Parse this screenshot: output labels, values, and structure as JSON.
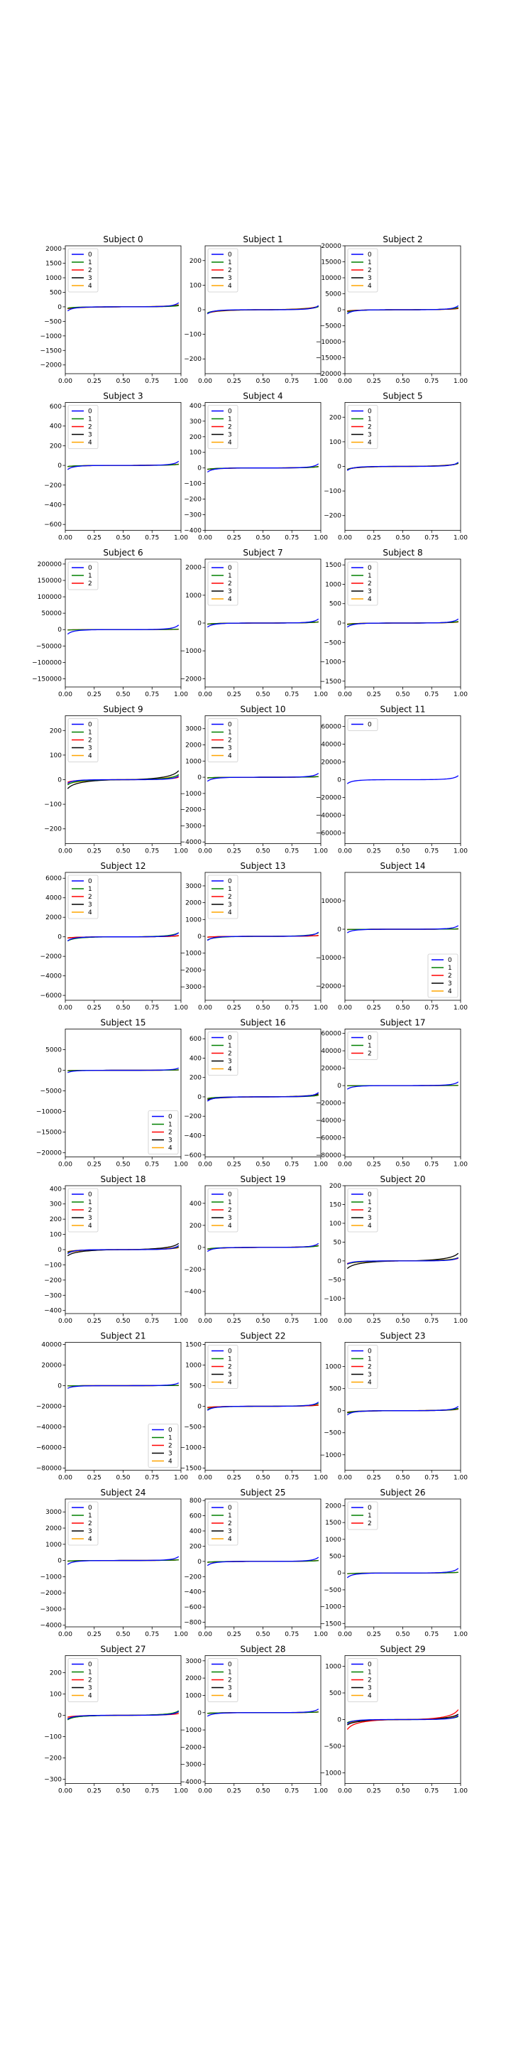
{
  "figure": {
    "colors": {
      "0": "#0000ff",
      "1": "#008000",
      "2": "#ff0000",
      "3": "#000000",
      "4": "#ffa500"
    },
    "x_ticks": [
      "0.00",
      "0.25",
      "0.50",
      "0.75",
      "1.00"
    ]
  },
  "chart_data": [
    {
      "type": "line",
      "title": "Subject 0",
      "legend": [
        "0",
        "1",
        "2",
        "3",
        "4"
      ],
      "legend_loc": "upper left",
      "yticks": [
        "2000",
        "1500",
        "1000",
        "500",
        "0",
        "−500",
        "−1000",
        "−1500",
        "−2000"
      ],
      "ylim": [
        -2300,
        2100
      ],
      "amplitudes": [
        2000,
        300,
        300,
        300,
        300
      ]
    },
    {
      "type": "line",
      "title": "Subject 1",
      "legend": [
        "0",
        "1",
        "2",
        "3",
        "4"
      ],
      "legend_loc": "upper left",
      "yticks": [
        "200",
        "100",
        "0",
        "−100",
        "−200"
      ],
      "ylim": [
        -260,
        260
      ],
      "amplitudes": [
        240,
        90,
        80,
        70,
        60
      ]
    },
    {
      "type": "line",
      "title": "Subject 2",
      "legend": [
        "0",
        "1",
        "2",
        "3",
        "4"
      ],
      "legend_loc": "upper left",
      "yticks": [
        "20000",
        "15000",
        "10000",
        "5000",
        "0",
        "−5000",
        "−10000",
        "−15000",
        "−20000"
      ],
      "ylim": [
        -20000,
        20000
      ],
      "amplitudes": [
        18000,
        5000,
        3000,
        2000,
        1500
      ]
    },
    {
      "type": "line",
      "title": "Subject 3",
      "legend": [
        "0",
        "1",
        "2",
        "3",
        "4"
      ],
      "legend_loc": "upper left",
      "yticks": [
        "600",
        "400",
        "200",
        "0",
        "−200",
        "−400",
        "−600"
      ],
      "ylim": [
        -660,
        640
      ],
      "amplitudes": [
        600,
        80,
        70,
        60,
        50
      ]
    },
    {
      "type": "line",
      "title": "Subject 4",
      "legend": [
        "0",
        "1",
        "2",
        "3",
        "4"
      ],
      "legend_loc": "upper left",
      "yticks": [
        "400",
        "300",
        "200",
        "100",
        "0",
        "−100",
        "−200",
        "−300",
        "−400"
      ],
      "ylim": [
        -400,
        420
      ],
      "amplitudes": [
        380,
        60,
        50,
        45,
        40
      ]
    },
    {
      "type": "line",
      "title": "Subject 5",
      "legend": [
        "0",
        "1",
        "2",
        "3",
        "4"
      ],
      "legend_loc": "upper left",
      "yticks": [
        "200",
        "100",
        "0",
        "−100",
        "−200"
      ],
      "ylim": [
        -260,
        260
      ],
      "amplitudes": [
        240,
        90,
        70,
        60,
        50
      ]
    },
    {
      "type": "line",
      "title": "Subject 6",
      "legend": [
        "0",
        "1",
        "2"
      ],
      "legend_loc": "upper left",
      "yticks": [
        "200000",
        "150000",
        "100000",
        "50000",
        "0",
        "−50000",
        "−100000",
        "−150000"
      ],
      "ylim": [
        -175000,
        215000
      ],
      "amplitudes": [
        200000,
        10000,
        5000
      ]
    },
    {
      "type": "line",
      "title": "Subject 7",
      "legend": [
        "0",
        "1",
        "2",
        "3",
        "4"
      ],
      "legend_loc": "upper left",
      "yticks": [
        "2000",
        "1000",
        "0",
        "−1000",
        "−2000"
      ],
      "ylim": [
        -2300,
        2300
      ],
      "amplitudes": [
        2100,
        300,
        250,
        200,
        150
      ]
    },
    {
      "type": "line",
      "title": "Subject 8",
      "legend": [
        "0",
        "1",
        "2",
        "3",
        "4"
      ],
      "legend_loc": "upper left",
      "yticks": [
        "1500",
        "1000",
        "500",
        "0",
        "−500",
        "−1000",
        "−1500"
      ],
      "ylim": [
        -1650,
        1650
      ],
      "amplitudes": [
        1500,
        300,
        200,
        150,
        100
      ]
    },
    {
      "type": "line",
      "title": "Subject 9",
      "legend": [
        "0",
        "1",
        "2",
        "3",
        "4"
      ],
      "legend_loc": "upper left",
      "yticks": [
        "200",
        "100",
        "0",
        "−100",
        "−200"
      ],
      "ylim": [
        -260,
        260
      ],
      "amplitudes": [
        220,
        150,
        60,
        180,
        80
      ]
    },
    {
      "type": "line",
      "title": "Subject 10",
      "legend": [
        "0",
        "1",
        "2",
        "3",
        "4"
      ],
      "legend_loc": "upper left",
      "yticks": [
        "3000",
        "2000",
        "1000",
        "0",
        "−1000",
        "−2000",
        "−3000",
        "−4000"
      ],
      "ylim": [
        -4100,
        3800
      ],
      "amplitudes": [
        3500,
        300,
        250,
        200,
        150
      ]
    },
    {
      "type": "line",
      "title": "Subject 11",
      "legend": [
        "0"
      ],
      "legend_loc": "upper left",
      "yticks": [
        "60000",
        "40000",
        "20000",
        "0",
        "−20000",
        "−40000",
        "−60000"
      ],
      "ylim": [
        -72000,
        72000
      ],
      "amplitudes": [
        65000
      ]
    },
    {
      "type": "line",
      "title": "Subject 12",
      "legend": [
        "0",
        "1",
        "2",
        "3",
        "4"
      ],
      "legend_loc": "upper left",
      "yticks": [
        "6000",
        "4000",
        "2000",
        "0",
        "−2000",
        "−4000",
        "−6000"
      ],
      "ylim": [
        -6500,
        6600
      ],
      "amplitudes": [
        6000,
        3000,
        800,
        600,
        400
      ]
    },
    {
      "type": "line",
      "title": "Subject 13",
      "legend": [
        "0",
        "1",
        "2",
        "3",
        "4"
      ],
      "legend_loc": "upper left",
      "yticks": [
        "3000",
        "2000",
        "1000",
        "0",
        "−1000",
        "−2000",
        "−3000"
      ],
      "ylim": [
        -3800,
        3800
      ],
      "amplitudes": [
        3500,
        1500,
        300,
        250,
        200
      ]
    },
    {
      "type": "line",
      "title": "Subject 14",
      "legend": [
        "0",
        "1",
        "2",
        "3",
        "4"
      ],
      "legend_loc": "lower right",
      "yticks": [
        "10000",
        "0",
        "−10000",
        "−20000"
      ],
      "ylim": [
        -25000,
        20000
      ],
      "amplitudes": [
        18000,
        1000,
        800,
        600,
        400
      ]
    },
    {
      "type": "line",
      "title": "Subject 15",
      "legend": [
        "0",
        "1",
        "2",
        "3",
        "4"
      ],
      "legend_loc": "lower right",
      "yticks": [
        "5000",
        "0",
        "−5000",
        "−10000",
        "−15000",
        "−20000"
      ],
      "ylim": [
        -21000,
        10000
      ],
      "amplitudes": [
        8000,
        800,
        600,
        500,
        400
      ]
    },
    {
      "type": "line",
      "title": "Subject 16",
      "legend": [
        "0",
        "1",
        "2",
        "3",
        "4"
      ],
      "legend_loc": "upper left",
      "yticks": [
        "600",
        "400",
        "200",
        "0",
        "−200",
        "−400",
        "−600"
      ],
      "ylim": [
        -620,
        700
      ],
      "amplitudes": [
        650,
        120,
        100,
        150,
        80
      ]
    },
    {
      "type": "line",
      "title": "Subject 17",
      "legend": [
        "0",
        "1",
        "2"
      ],
      "legend_loc": "upper left",
      "yticks": [
        "60000",
        "40000",
        "20000",
        "0",
        "−20000",
        "−40000",
        "−60000",
        "−80000"
      ],
      "ylim": [
        -82000,
        65000
      ],
      "amplitudes": [
        60000,
        2000,
        1000
      ]
    },
    {
      "type": "line",
      "title": "Subject 18",
      "legend": [
        "0",
        "1",
        "2",
        "3",
        "4"
      ],
      "legend_loc": "upper left",
      "yticks": [
        "400",
        "300",
        "200",
        "100",
        "0",
        "−100",
        "−200",
        "−300",
        "−400"
      ],
      "ylim": [
        -420,
        420
      ],
      "amplitudes": [
        380,
        120,
        80,
        200,
        90
      ]
    },
    {
      "type": "line",
      "title": "Subject 19",
      "legend": [
        "0",
        "1",
        "2",
        "3",
        "4"
      ],
      "legend_loc": "upper left",
      "yticks": [
        "400",
        "200",
        "0",
        "−200",
        "−400"
      ],
      "ylim": [
        -600,
        560
      ],
      "amplitudes": [
        520,
        100,
        90,
        80,
        70
      ]
    },
    {
      "type": "line",
      "title": "Subject 20",
      "legend": [
        "0",
        "1",
        "2",
        "3",
        "4"
      ],
      "legend_loc": "upper left",
      "yticks": [
        "200",
        "150",
        "100",
        "50",
        "0",
        "−50",
        "−100"
      ],
      "ylim": [
        -140,
        200
      ],
      "amplitudes": [
        120,
        60,
        40,
        100,
        35
      ]
    },
    {
      "type": "line",
      "title": "Subject 21",
      "legend": [
        "0",
        "1",
        "2",
        "3",
        "4"
      ],
      "legend_loc": "lower right",
      "yticks": [
        "40000",
        "20000",
        "0",
        "−20000",
        "−40000",
        "−60000",
        "−80000"
      ],
      "ylim": [
        -82000,
        42000
      ],
      "amplitudes": [
        38000,
        2000,
        1500,
        1200,
        1000
      ]
    },
    {
      "type": "line",
      "title": "Subject 22",
      "legend": [
        "0",
        "1",
        "2",
        "3",
        "4"
      ],
      "legend_loc": "upper left",
      "yticks": [
        "1500",
        "1000",
        "500",
        "0",
        "−500",
        "−1000",
        "−1500"
      ],
      "ylim": [
        -1550,
        1550
      ],
      "amplitudes": [
        1450,
        500,
        200,
        150,
        100
      ]
    },
    {
      "type": "line",
      "title": "Subject 23",
      "legend": [
        "0",
        "1",
        "2",
        "3",
        "4"
      ],
      "legend_loc": "upper left",
      "yticks": [
        "1000",
        "500",
        "0",
        "−500",
        "−1000"
      ],
      "ylim": [
        -1350,
        1550
      ],
      "amplitudes": [
        1400,
        300,
        200,
        250,
        150
      ]
    },
    {
      "type": "line",
      "title": "Subject 24",
      "legend": [
        "0",
        "1",
        "2",
        "3",
        "4"
      ],
      "legend_loc": "upper left",
      "yticks": [
        "3000",
        "2000",
        "1000",
        "0",
        "−1000",
        "−2000",
        "−3000",
        "−4000"
      ],
      "ylim": [
        -4100,
        3800
      ],
      "amplitudes": [
        3500,
        300,
        250,
        200,
        150
      ]
    },
    {
      "type": "line",
      "title": "Subject 25",
      "legend": [
        "0",
        "1",
        "2",
        "3",
        "4"
      ],
      "legend_loc": "upper left",
      "yticks": [
        "800",
        "600",
        "400",
        "200",
        "0",
        "−200",
        "−400",
        "−600",
        "−800"
      ],
      "ylim": [
        -860,
        820
      ],
      "amplitudes": [
        780,
        80,
        70,
        60,
        50
      ]
    },
    {
      "type": "line",
      "title": "Subject 26",
      "legend": [
        "0",
        "1",
        "2"
      ],
      "legend_loc": "upper left",
      "yticks": [
        "2000",
        "1500",
        "1000",
        "500",
        "0",
        "−500",
        "−1000",
        "−1500"
      ],
      "ylim": [
        -1600,
        2200
      ],
      "amplitudes": [
        2000,
        150,
        120
      ]
    },
    {
      "type": "line",
      "title": "Subject 27",
      "legend": [
        "0",
        "1",
        "2",
        "3",
        "4"
      ],
      "legend_loc": "upper left",
      "yticks": [
        "200",
        "100",
        "0",
        "−100",
        "−200",
        "−300"
      ],
      "ylim": [
        -320,
        280
      ],
      "amplitudes": [
        260,
        150,
        50,
        80,
        40
      ]
    },
    {
      "type": "line",
      "title": "Subject 28",
      "legend": [
        "0",
        "1",
        "2",
        "3",
        "4"
      ],
      "legend_loc": "upper left",
      "yticks": [
        "3000",
        "2000",
        "1000",
        "0",
        "−1000",
        "−2000",
        "−3000",
        "−4000"
      ],
      "ylim": [
        -4100,
        3300
      ],
      "amplitudes": [
        3000,
        300,
        250,
        200,
        150
      ]
    },
    {
      "type": "line",
      "title": "Subject 29",
      "legend": [
        "0",
        "1",
        "2",
        "3",
        "4"
      ],
      "legend_loc": "upper left",
      "yticks": [
        "1000",
        "500",
        "0",
        "−500",
        "−1000"
      ],
      "ylim": [
        -1200,
        1200
      ],
      "amplitudes": [
        1100,
        400,
        1100,
        500,
        300
      ]
    }
  ]
}
